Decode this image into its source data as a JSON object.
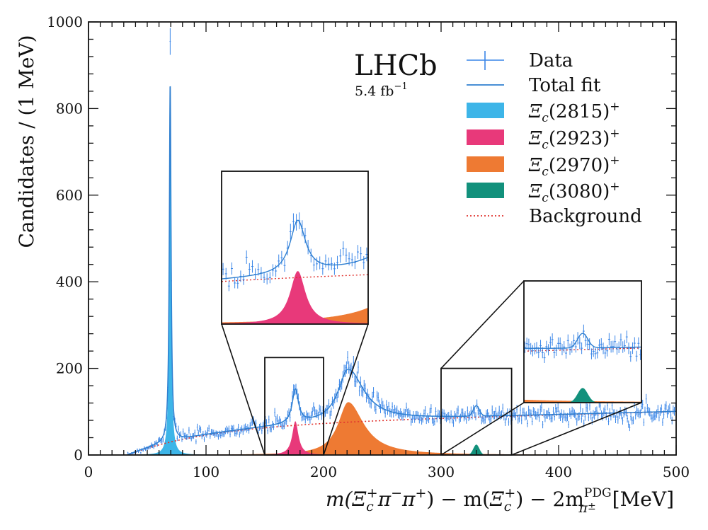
{
  "chart_data": {
    "type": "histogram-with-fit",
    "experiment_label": "LHCb",
    "luminosity_label": "5.4 fb",
    "luminosity_exponent": "−1",
    "xlabel": "m(Ξc⁺π⁻π⁺) − m(Ξc⁺) − 2m π± PDG [MeV]",
    "xlabel_parts": {
      "m1": "m(",
      "xi1": "Ξ",
      "c1": "c",
      "plus1": "+",
      "pi1": "π",
      "minus1": "−",
      "pi2": "π",
      "plus2": "+",
      "mid": ") − m(",
      "xi2": "Ξ",
      "c2": "c",
      "plus3": "+",
      "mid2": ") − 2m",
      "sup_pdg": "PDG",
      "sub_pi": "π",
      "sub_pm": "±",
      "unit": " [MeV]"
    },
    "ylabel": "Candidates / (1 MeV)",
    "xlim": [
      0,
      500
    ],
    "ylim": [
      0,
      1000
    ],
    "xticks": [
      0,
      100,
      200,
      300,
      400,
      500
    ],
    "yticks": [
      0,
      200,
      400,
      600,
      800,
      1000
    ],
    "xtick_labels": [
      "0",
      "100",
      "200",
      "300",
      "400",
      "500"
    ],
    "ytick_labels": [
      "0",
      "200",
      "400",
      "600",
      "800",
      "1000"
    ],
    "legend": {
      "position": "top-right",
      "entries": [
        {
          "key": "data",
          "label": "Data",
          "style": "errorbar"
        },
        {
          "key": "total",
          "label": "Total fit",
          "style": "line"
        },
        {
          "key": "xi2815",
          "label_main": "Ξ",
          "label_sub": "c",
          "label_mass": "(2815)",
          "label_sup": "+",
          "style": "fill"
        },
        {
          "key": "xi2923",
          "label_main": "Ξ",
          "label_sub": "c",
          "label_mass": "(2923)",
          "label_sup": "+",
          "style": "fill"
        },
        {
          "key": "xi2970",
          "label_main": "Ξ",
          "label_sub": "c",
          "label_mass": "(2970)",
          "label_sup": "+",
          "style": "fill"
        },
        {
          "key": "xi3080",
          "label_main": "Ξ",
          "label_sub": "c",
          "label_mass": "(3080)",
          "label_sup": "+",
          "style": "fill"
        },
        {
          "key": "background",
          "label": "Background",
          "style": "dotted"
        }
      ]
    },
    "colors": {
      "data": "#3a86e8",
      "total": "#2f7fd0",
      "xi2815": "#3db5e8",
      "xi2923": "#e8397a",
      "xi2970": "#ee7a33",
      "xi3080": "#12917c",
      "background": "#e0332f",
      "frame": "#111111"
    },
    "components": {
      "threshold": 33,
      "background": {
        "scale": 100,
        "shape": "threshold-rise"
      },
      "xi2815": {
        "mass": 69.5,
        "width": 0.9,
        "peak": 830
      },
      "xi2923": {
        "mass": 176,
        "width": 3.2,
        "peak": 78
      },
      "xi2970": {
        "mass": 221,
        "width": 11,
        "peak": 122
      },
      "xi3080": {
        "mass": 330,
        "width": 2.6,
        "peak": 24
      }
    },
    "data_peak_value": 955,
    "zoom_insets": [
      {
        "name": "left-zoom",
        "x_range": [
          150,
          200
        ],
        "y_range": [
          0,
          225
        ]
      },
      {
        "name": "right-zoom",
        "x_range": [
          300,
          360
        ],
        "y_range": [
          0,
          200
        ]
      }
    ]
  }
}
